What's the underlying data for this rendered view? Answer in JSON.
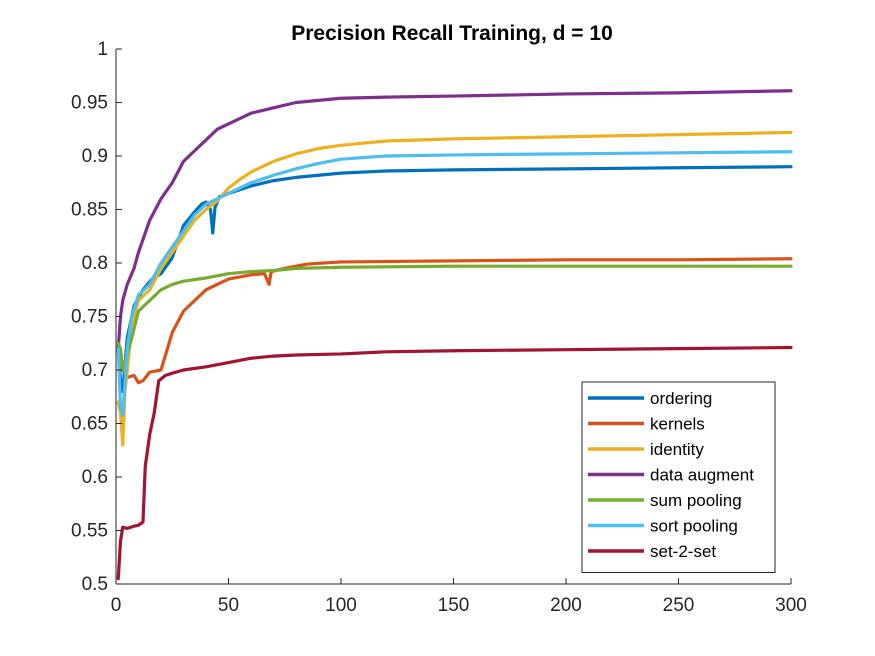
{
  "chart_data": {
    "type": "line",
    "title": "Precision Recall Training, d = 10",
    "xlabel": "",
    "ylabel": "",
    "xlim": [
      0,
      300
    ],
    "ylim": [
      0.5,
      1
    ],
    "xticks": [
      0,
      50,
      100,
      150,
      200,
      250,
      300
    ],
    "xtick_labels": [
      "0",
      "50",
      "100",
      "150",
      "200",
      "250",
      "300"
    ],
    "yticks": [
      0.5,
      0.55,
      0.6,
      0.65,
      0.7,
      0.75,
      0.8,
      0.85,
      0.9,
      0.95,
      1
    ],
    "ytick_labels": [
      "0.5",
      "0.55",
      "0.6",
      "0.65",
      "0.7",
      "0.75",
      "0.8",
      "0.85",
      "0.9",
      "0.95",
      "1"
    ],
    "grid": false,
    "legend_position": "bottom-right",
    "series": [
      {
        "name": "ordering",
        "color": "#0072BD",
        "points": [
          [
            1,
            0.72
          ],
          [
            2,
            0.69
          ],
          [
            3,
            0.68
          ],
          [
            5,
            0.73
          ],
          [
            8,
            0.76
          ],
          [
            12,
            0.775
          ],
          [
            16,
            0.785
          ],
          [
            20,
            0.79
          ],
          [
            25,
            0.805
          ],
          [
            30,
            0.835
          ],
          [
            35,
            0.848
          ],
          [
            38,
            0.855
          ],
          [
            40,
            0.857
          ],
          [
            42,
            0.85
          ],
          [
            43,
            0.828
          ],
          [
            44,
            0.852
          ],
          [
            46,
            0.862
          ],
          [
            50,
            0.865
          ],
          [
            60,
            0.872
          ],
          [
            70,
            0.877
          ],
          [
            80,
            0.88
          ],
          [
            100,
            0.884
          ],
          [
            120,
            0.886
          ],
          [
            150,
            0.887
          ],
          [
            200,
            0.888
          ],
          [
            250,
            0.889
          ],
          [
            300,
            0.89
          ]
        ]
      },
      {
        "name": "kernels",
        "color": "#D95319",
        "points": [
          [
            1,
            0.725
          ],
          [
            2,
            0.71
          ],
          [
            3,
            0.7
          ],
          [
            5,
            0.693
          ],
          [
            8,
            0.695
          ],
          [
            10,
            0.688
          ],
          [
            12,
            0.69
          ],
          [
            15,
            0.698
          ],
          [
            20,
            0.7
          ],
          [
            25,
            0.735
          ],
          [
            30,
            0.755
          ],
          [
            35,
            0.765
          ],
          [
            40,
            0.775
          ],
          [
            45,
            0.78
          ],
          [
            50,
            0.785
          ],
          [
            60,
            0.789
          ],
          [
            66,
            0.79
          ],
          [
            68,
            0.78
          ],
          [
            69,
            0.792
          ],
          [
            75,
            0.795
          ],
          [
            85,
            0.799
          ],
          [
            100,
            0.801
          ],
          [
            150,
            0.802
          ],
          [
            200,
            0.803
          ],
          [
            250,
            0.803
          ],
          [
            300,
            0.804
          ]
        ]
      },
      {
        "name": "identity",
        "color": "#EDB120",
        "points": [
          [
            1,
            0.67
          ],
          [
            2,
            0.66
          ],
          [
            3,
            0.63
          ],
          [
            4,
            0.68
          ],
          [
            6,
            0.72
          ],
          [
            8,
            0.75
          ],
          [
            10,
            0.765
          ],
          [
            15,
            0.775
          ],
          [
            20,
            0.795
          ],
          [
            25,
            0.81
          ],
          [
            30,
            0.825
          ],
          [
            35,
            0.84
          ],
          [
            40,
            0.85
          ],
          [
            45,
            0.858
          ],
          [
            50,
            0.87
          ],
          [
            55,
            0.878
          ],
          [
            60,
            0.885
          ],
          [
            70,
            0.895
          ],
          [
            80,
            0.902
          ],
          [
            90,
            0.907
          ],
          [
            100,
            0.91
          ],
          [
            120,
            0.914
          ],
          [
            150,
            0.916
          ],
          [
            200,
            0.918
          ],
          [
            250,
            0.92
          ],
          [
            300,
            0.922
          ]
        ]
      },
      {
        "name": "data augment",
        "color": "#7E2F8E",
        "points": [
          [
            1,
            0.72
          ],
          [
            2,
            0.75
          ],
          [
            3,
            0.765
          ],
          [
            5,
            0.78
          ],
          [
            8,
            0.795
          ],
          [
            10,
            0.81
          ],
          [
            15,
            0.84
          ],
          [
            20,
            0.86
          ],
          [
            25,
            0.875
          ],
          [
            30,
            0.895
          ],
          [
            35,
            0.905
          ],
          [
            40,
            0.915
          ],
          [
            45,
            0.925
          ],
          [
            50,
            0.93
          ],
          [
            55,
            0.935
          ],
          [
            60,
            0.94
          ],
          [
            70,
            0.945
          ],
          [
            80,
            0.95
          ],
          [
            90,
            0.952
          ],
          [
            100,
            0.954
          ],
          [
            120,
            0.955
          ],
          [
            150,
            0.956
          ],
          [
            200,
            0.958
          ],
          [
            250,
            0.959
          ],
          [
            300,
            0.961
          ]
        ]
      },
      {
        "name": "sum pooling",
        "color": "#77AC30",
        "points": [
          [
            1,
            0.725
          ],
          [
            2,
            0.72
          ],
          [
            3,
            0.7
          ],
          [
            5,
            0.715
          ],
          [
            7,
            0.73
          ],
          [
            10,
            0.755
          ],
          [
            15,
            0.765
          ],
          [
            20,
            0.775
          ],
          [
            25,
            0.78
          ],
          [
            30,
            0.783
          ],
          [
            40,
            0.786
          ],
          [
            50,
            0.79
          ],
          [
            60,
            0.792
          ],
          [
            70,
            0.793
          ],
          [
            80,
            0.795
          ],
          [
            100,
            0.796
          ],
          [
            150,
            0.797
          ],
          [
            200,
            0.797
          ],
          [
            250,
            0.797
          ],
          [
            300,
            0.797
          ]
        ]
      },
      {
        "name": "sort pooling",
        "color": "#4DBEEE",
        "points": [
          [
            1,
            0.72
          ],
          [
            2,
            0.665
          ],
          [
            3,
            0.658
          ],
          [
            5,
            0.72
          ],
          [
            7,
            0.75
          ],
          [
            10,
            0.77
          ],
          [
            15,
            0.78
          ],
          [
            20,
            0.8
          ],
          [
            25,
            0.815
          ],
          [
            30,
            0.83
          ],
          [
            35,
            0.845
          ],
          [
            40,
            0.855
          ],
          [
            45,
            0.86
          ],
          [
            50,
            0.865
          ],
          [
            60,
            0.875
          ],
          [
            70,
            0.882
          ],
          [
            80,
            0.888
          ],
          [
            90,
            0.893
          ],
          [
            100,
            0.897
          ],
          [
            120,
            0.9
          ],
          [
            150,
            0.901
          ],
          [
            200,
            0.902
          ],
          [
            250,
            0.903
          ],
          [
            300,
            0.904
          ]
        ]
      },
      {
        "name": "set-2-set",
        "color": "#A2142F",
        "points": [
          [
            1,
            0.505
          ],
          [
            2,
            0.54
          ],
          [
            3,
            0.553
          ],
          [
            5,
            0.552
          ],
          [
            8,
            0.554
          ],
          [
            10,
            0.555
          ],
          [
            12,
            0.558
          ],
          [
            13,
            0.61
          ],
          [
            15,
            0.64
          ],
          [
            17,
            0.66
          ],
          [
            19,
            0.69
          ],
          [
            22,
            0.695
          ],
          [
            25,
            0.697
          ],
          [
            30,
            0.7
          ],
          [
            40,
            0.703
          ],
          [
            50,
            0.707
          ],
          [
            60,
            0.711
          ],
          [
            70,
            0.713
          ],
          [
            80,
            0.714
          ],
          [
            100,
            0.715
          ],
          [
            120,
            0.717
          ],
          [
            150,
            0.718
          ],
          [
            200,
            0.719
          ],
          [
            250,
            0.72
          ],
          [
            300,
            0.721
          ]
        ]
      }
    ]
  }
}
